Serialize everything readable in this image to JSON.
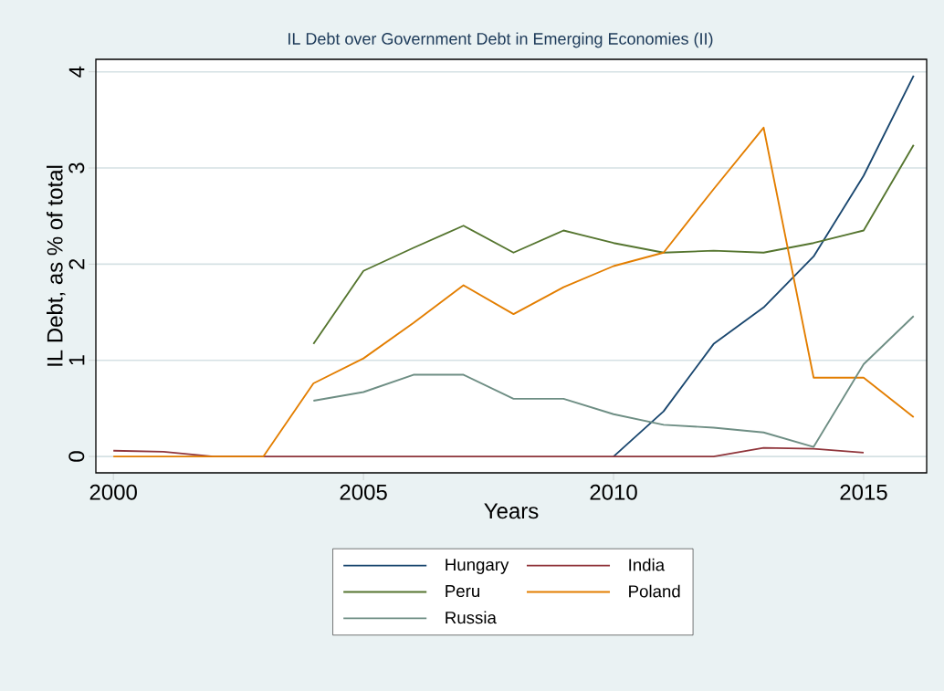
{
  "chart_data": {
    "type": "line",
    "title": "IL Debt over Government Debt in Emerging Economies (II)",
    "xlabel": "Years",
    "ylabel": "IL Debt, as % of total",
    "x": [
      2000,
      2001,
      2002,
      2003,
      2004,
      2005,
      2006,
      2007,
      2008,
      2009,
      2010,
      2011,
      2012,
      2013,
      2014,
      2015,
      2016
    ],
    "series": [
      {
        "name": "Hungary",
        "color": "#1a476f",
        "values": [
          null,
          null,
          null,
          null,
          null,
          null,
          null,
          null,
          null,
          null,
          0,
          0.47,
          1.17,
          1.55,
          2.08,
          2.92,
          3.96
        ]
      },
      {
        "name": "India",
        "color": "#90353b",
        "values": [
          0.06,
          0.05,
          0,
          0,
          0,
          0,
          0,
          0,
          0,
          0,
          0,
          0,
          0,
          0.09,
          0.08,
          0.04,
          null
        ]
      },
      {
        "name": "Peru",
        "color": "#55752f",
        "values": [
          null,
          null,
          null,
          null,
          1.17,
          1.93,
          2.17,
          2.4,
          2.12,
          2.35,
          2.22,
          2.12,
          2.14,
          2.12,
          2.22,
          2.35,
          3.24
        ]
      },
      {
        "name": "Poland",
        "color": "#e37e00",
        "values": [
          0,
          0,
          0,
          0,
          0.76,
          1.02,
          1.39,
          1.78,
          1.48,
          1.76,
          1.98,
          2.12,
          2.78,
          3.42,
          0.82,
          0.82,
          0.41
        ]
      },
      {
        "name": "Russia",
        "color": "#6e8e84",
        "values": [
          null,
          null,
          null,
          null,
          0.58,
          0.67,
          0.85,
          0.85,
          0.6,
          0.6,
          0.44,
          0.33,
          0.3,
          0.25,
          0.1,
          0.96,
          1.46
        ]
      }
    ],
    "xlim": [
      1999.65,
      2016.26
    ],
    "ylim": [
      -0.17,
      4.13
    ],
    "xticks": [
      2000,
      2005,
      2010,
      2015
    ],
    "yticks": [
      0,
      1,
      2,
      3,
      4
    ],
    "grid": "y",
    "legend": "bottom",
    "marker": "none",
    "line_style": "solid"
  }
}
